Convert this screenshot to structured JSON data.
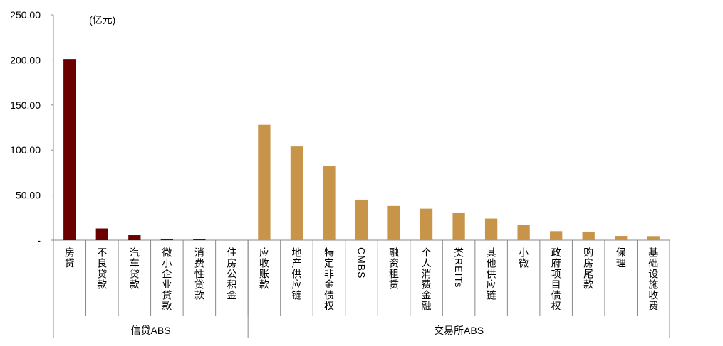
{
  "chart_data": {
    "type": "bar",
    "unit_label": "(亿元)",
    "categories": [
      "房贷",
      "不良贷款",
      "汽车贷款",
      "微小企业贷款",
      "消费性贷款",
      "住房公积金",
      "应收账款",
      "地产供应链",
      "特定非金债权",
      "CMBS",
      "融资租赁",
      "个人消费金融",
      "类REITs",
      "其他供应链",
      "小微",
      "政府项目债权",
      "购房尾款",
      "保理",
      "基础设施收费"
    ],
    "series": [
      {
        "name": "信贷ABS",
        "color": "#6b0000",
        "values": [
          201,
          13,
          5.5,
          1.6,
          1,
          0,
          null,
          null,
          null,
          null,
          null,
          null,
          null,
          null,
          null,
          null,
          null,
          null,
          null
        ]
      },
      {
        "name": "交易所ABS",
        "color": "#c8944a",
        "values": [
          null,
          null,
          null,
          null,
          null,
          null,
          128,
          104,
          82,
          45,
          38,
          35,
          30,
          24,
          17,
          10,
          9.5,
          4.7,
          4.5
        ]
      }
    ],
    "ylim": [
      0,
      250
    ],
    "yticks": [
      {
        "value": 0,
        "label": "-"
      },
      {
        "value": 50,
        "label": "50.00"
      },
      {
        "value": 100,
        "label": "100.00"
      },
      {
        "value": 150,
        "label": "150.00"
      },
      {
        "value": 200,
        "label": "200.00"
      },
      {
        "value": 250,
        "label": "250.00"
      }
    ],
    "grid": false
  }
}
